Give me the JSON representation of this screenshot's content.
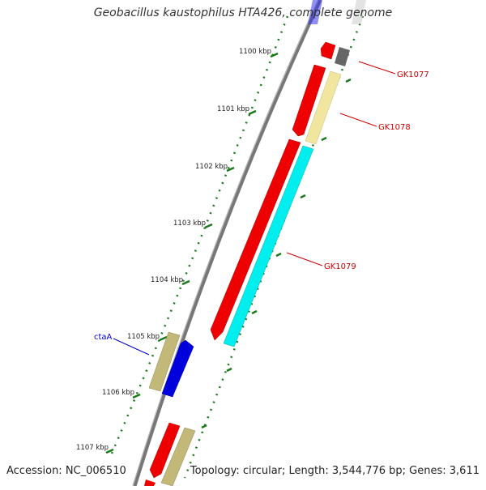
{
  "header": {
    "title": "Geobacillus kaustophilus HTA426, complete genome"
  },
  "footer": {
    "accession": "Accession: NC_006510",
    "summary": "Topology: circular; Length: 3,544,776 bp; Genes: 3,611"
  },
  "ticks": [
    "1100 kbp",
    "1101 kbp",
    "1102 kbp",
    "1103 kbp",
    "1104 kbp",
    "1105 kbp",
    "1106 kbp",
    "1107 kbp"
  ],
  "gene_labels": [
    {
      "text": "GK1077",
      "color": "#cc0000"
    },
    {
      "text": "GK1078",
      "color": "#cc0000"
    },
    {
      "text": "GK1079",
      "color": "#cc0000"
    },
    {
      "text": "ctaA",
      "color": "#0000cc"
    }
  ],
  "colors": {
    "backbone": "#777777",
    "tick": "#1a7a1a",
    "cds_red": "#ee0000",
    "cds_yellow": "#f1e6a0",
    "cds_cyan": "#00eeee",
    "cds_grey": "#666666",
    "cds_blue": "#0000dd",
    "cds_khaki": "#c2b878"
  }
}
